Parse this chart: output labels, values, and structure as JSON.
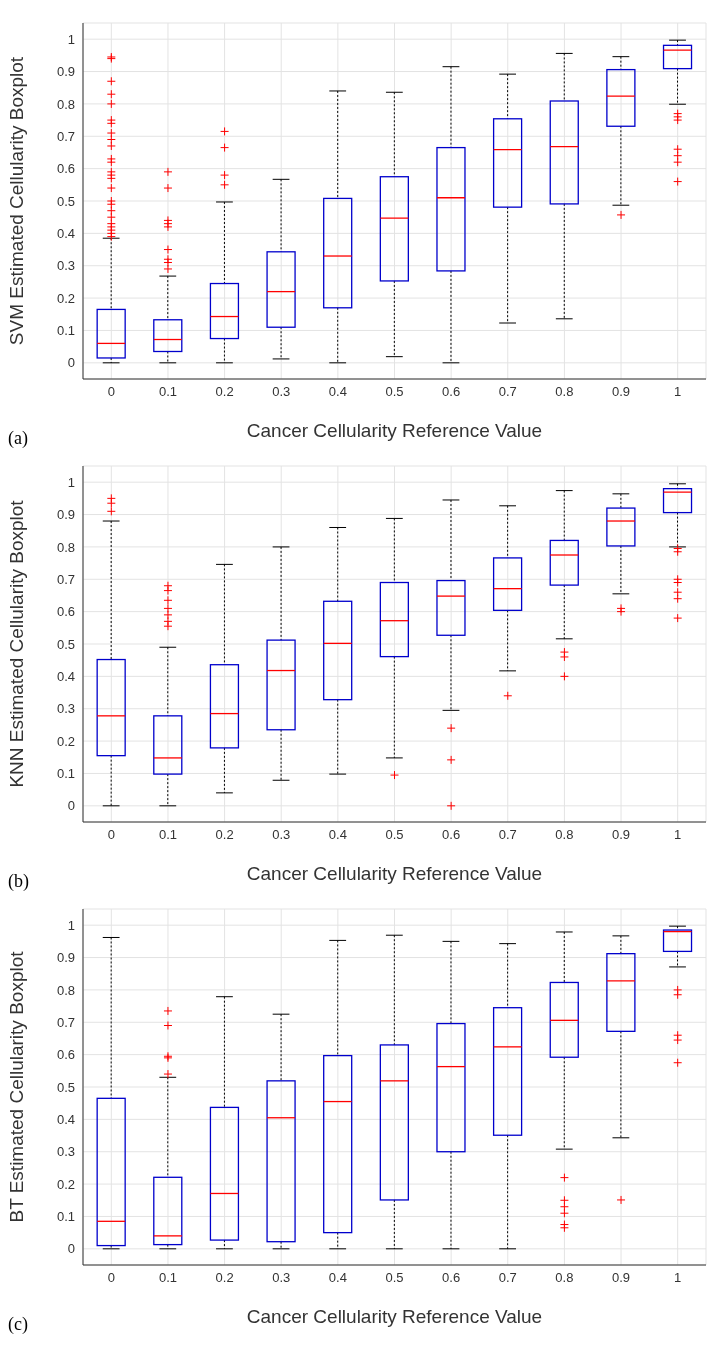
{
  "chart_data": [
    {
      "type": "box",
      "ylabel": "SVM Estimated Cellularity Boxplot",
      "xlabel": "Cancer Cellularity Reference Value",
      "annotations": [
        "(a)"
      ],
      "categories": [
        "0",
        "0.1",
        "0.2",
        "0.3",
        "0.4",
        "0.5",
        "0.6",
        "0.7",
        "0.8",
        "0.9",
        "1"
      ],
      "ylim": [
        -0.05,
        1.05
      ],
      "yticks": [
        0,
        0.1,
        0.2,
        0.3,
        0.4,
        0.5,
        0.6,
        0.7,
        0.8,
        0.9,
        1
      ],
      "grid": true,
      "marker": "cross",
      "series": [
        {
          "color": "#0000cc",
          "boxes": [
            {
              "low": 0,
              "q1": 0.015,
              "median": 0.06,
              "q3": 0.165,
              "high": 0.385,
              "outliers": [
                0.39,
                0.4,
                0.41,
                0.42,
                0.43,
                0.45,
                0.47,
                0.49,
                0.5,
                0.54,
                0.57,
                0.58,
                0.59,
                0.62,
                0.63,
                0.67,
                0.69,
                0.71,
                0.74,
                0.75,
                0.8,
                0.83,
                0.87,
                0.94,
                0.945
              ]
            },
            {
              "low": 0,
              "q1": 0.035,
              "median": 0.072,
              "q3": 0.133,
              "high": 0.268,
              "outliers": [
                0.29,
                0.31,
                0.32,
                0.35,
                0.42,
                0.43,
                0.44,
                0.54,
                0.59
              ]
            },
            {
              "low": 0,
              "q1": 0.075,
              "median": 0.143,
              "q3": 0.245,
              "high": 0.497,
              "outliers": [
                0.55,
                0.58,
                0.665,
                0.715
              ]
            },
            {
              "low": 0.012,
              "q1": 0.11,
              "median": 0.22,
              "q3": 0.343,
              "high": 0.567
            },
            {
              "low": 0,
              "q1": 0.17,
              "median": 0.33,
              "q3": 0.508,
              "high": 0.84
            },
            {
              "low": 0.019,
              "q1": 0.253,
              "median": 0.447,
              "q3": 0.575,
              "high": 0.836
            },
            {
              "low": 0,
              "q1": 0.284,
              "median": 0.51,
              "q3": 0.665,
              "high": 0.915
            },
            {
              "low": 0.123,
              "q1": 0.481,
              "median": 0.659,
              "q3": 0.754,
              "high": 0.892
            },
            {
              "low": 0.136,
              "q1": 0.491,
              "median": 0.668,
              "q3": 0.809,
              "high": 0.956
            },
            {
              "low": 0.487,
              "q1": 0.731,
              "median": 0.824,
              "q3": 0.906,
              "high": 0.946,
              "outliers": [
                0.457
              ]
            },
            {
              "low": 0.799,
              "q1": 0.909,
              "median": 0.966,
              "q3": 0.981,
              "high": 0.997,
              "outliers": [
                0.77,
                0.76,
                0.75,
                0.66,
                0.64,
                0.62,
                0.56
              ]
            }
          ]
        }
      ]
    },
    {
      "type": "box",
      "ylabel": "KNN Estimated Cellularity Boxplot",
      "xlabel": "Cancer Cellularity Reference Value",
      "annotations": [
        "(b)"
      ],
      "categories": [
        "0",
        "0.1",
        "0.2",
        "0.3",
        "0.4",
        "0.5",
        "0.6",
        "0.7",
        "0.8",
        "0.9",
        "1"
      ],
      "ylim": [
        -0.05,
        1.05
      ],
      "yticks": [
        0,
        0.1,
        0.2,
        0.3,
        0.4,
        0.5,
        0.6,
        0.7,
        0.8,
        0.9,
        1
      ],
      "grid": true,
      "marker": "cross",
      "series": [
        {
          "color": "#0000cc",
          "boxes": [
            {
              "low": 0,
              "q1": 0.155,
              "median": 0.278,
              "q3": 0.452,
              "high": 0.88,
              "outliers": [
                0.91,
                0.935,
                0.95
              ]
            },
            {
              "low": 0,
              "q1": 0.098,
              "median": 0.148,
              "q3": 0.278,
              "high": 0.49,
              "outliers": [
                0.555,
                0.57,
                0.59,
                0.61,
                0.635,
                0.665,
                0.68
              ]
            },
            {
              "low": 0.04,
              "q1": 0.179,
              "median": 0.285,
              "q3": 0.436,
              "high": 0.746
            },
            {
              "low": 0.079,
              "q1": 0.235,
              "median": 0.418,
              "q3": 0.512,
              "high": 0.8
            },
            {
              "low": 0.098,
              "q1": 0.328,
              "median": 0.502,
              "q3": 0.632,
              "high": 0.86
            },
            {
              "low": 0.148,
              "q1": 0.461,
              "median": 0.572,
              "q3": 0.69,
              "high": 0.888,
              "outliers": [
                0.095
              ]
            },
            {
              "low": 0.295,
              "q1": 0.527,
              "median": 0.648,
              "q3": 0.696,
              "high": 0.945,
              "outliers": [
                0.24,
                0.142,
                0
              ]
            },
            {
              "low": 0.417,
              "q1": 0.604,
              "median": 0.671,
              "q3": 0.766,
              "high": 0.927,
              "outliers": [
                0.34
              ]
            },
            {
              "low": 0.516,
              "q1": 0.682,
              "median": 0.775,
              "q3": 0.82,
              "high": 0.974,
              "outliers": [
                0.475,
                0.46,
                0.4
              ]
            },
            {
              "low": 0.655,
              "q1": 0.803,
              "median": 0.88,
              "q3": 0.92,
              "high": 0.964,
              "outliers": [
                0.61,
                0.6
              ]
            },
            {
              "low": 0.8,
              "q1": 0.906,
              "median": 0.969,
              "q3": 0.98,
              "high": 0.995,
              "outliers": [
                0.795,
                0.785,
                0.7,
                0.69,
                0.66,
                0.64,
                0.58
              ]
            }
          ]
        }
      ]
    },
    {
      "type": "box",
      "ylabel": "BT Estimated Cellularity Boxplot",
      "xlabel": "Cancer Cellularity Reference Value",
      "annotations": [
        "(c)"
      ],
      "categories": [
        "0",
        "0.1",
        "0.2",
        "0.3",
        "0.4",
        "0.5",
        "0.6",
        "0.7",
        "0.8",
        "0.9",
        "1"
      ],
      "ylim": [
        -0.05,
        1.05
      ],
      "yticks": [
        0,
        0.1,
        0.2,
        0.3,
        0.4,
        0.5,
        0.6,
        0.7,
        0.8,
        0.9,
        1
      ],
      "grid": true,
      "marker": "cross",
      "series": [
        {
          "color": "#0000cc",
          "boxes": [
            {
              "low": 0,
              "q1": 0.01,
              "median": 0.085,
              "q3": 0.465,
              "high": 0.962
            },
            {
              "low": 0,
              "q1": 0.013,
              "median": 0.04,
              "q3": 0.221,
              "high": 0.53,
              "outliers": [
                0.54,
                0.59,
                0.595,
                0.69,
                0.735
              ]
            },
            {
              "low": 0,
              "q1": 0.027,
              "median": 0.171,
              "q3": 0.437,
              "high": 0.779
            },
            {
              "low": 0,
              "q1": 0.022,
              "median": 0.405,
              "q3": 0.519,
              "high": 0.725
            },
            {
              "low": 0,
              "q1": 0.05,
              "median": 0.455,
              "q3": 0.597,
              "high": 0.953
            },
            {
              "low": 0,
              "q1": 0.151,
              "median": 0.519,
              "q3": 0.63,
              "high": 0.969
            },
            {
              "low": 0,
              "q1": 0.3,
              "median": 0.563,
              "q3": 0.696,
              "high": 0.95
            },
            {
              "low": 0,
              "q1": 0.351,
              "median": 0.624,
              "q3": 0.745,
              "high": 0.943
            },
            {
              "low": 0.308,
              "q1": 0.592,
              "median": 0.706,
              "q3": 0.823,
              "high": 0.979,
              "outliers": [
                0.22,
                0.15,
                0.13,
                0.11,
                0.075,
                0.065
              ]
            },
            {
              "low": 0.343,
              "q1": 0.672,
              "median": 0.828,
              "q3": 0.912,
              "high": 0.967,
              "outliers": [
                0.151
              ]
            },
            {
              "low": 0.871,
              "q1": 0.919,
              "median": 0.98,
              "q3": 0.985,
              "high": 0.997,
              "outliers": [
                0.8,
                0.785,
                0.66,
                0.645,
                0.575
              ]
            }
          ]
        }
      ]
    }
  ]
}
